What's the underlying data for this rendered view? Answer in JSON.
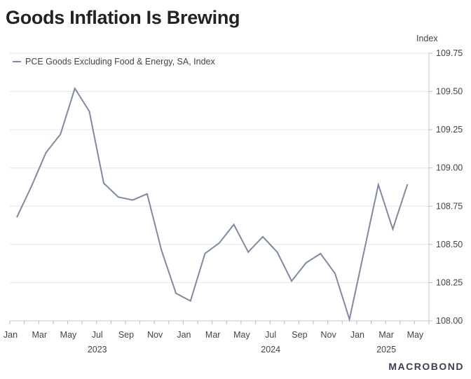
{
  "title": "Goods Inflation Is Brewing",
  "brand": "MACROBOND",
  "chart_data": {
    "type": "line",
    "title": "Goods Inflation Is Brewing",
    "ylabel": "Index",
    "ylim": [
      108.0,
      109.75
    ],
    "yticks": [
      "109.75",
      "109.50",
      "109.25",
      "109.00",
      "108.75",
      "108.50",
      "108.25",
      "108.00"
    ],
    "grid": true,
    "legend_position": "top-left",
    "x_tick_labels": [
      {
        "label": "Jan",
        "month": 0
      },
      {
        "label": "Mar",
        "month": 2
      },
      {
        "label": "May",
        "month": 4
      },
      {
        "label": "Jul",
        "month": 6
      },
      {
        "label": "Sep",
        "month": 8
      },
      {
        "label": "Nov",
        "month": 10
      },
      {
        "label": "Jan",
        "month": 12
      },
      {
        "label": "Mar",
        "month": 14
      },
      {
        "label": "May",
        "month": 16
      },
      {
        "label": "Jul",
        "month": 18
      },
      {
        "label": "Sep",
        "month": 20
      },
      {
        "label": "Nov",
        "month": 22
      },
      {
        "label": "Jan",
        "month": 24
      },
      {
        "label": "Mar",
        "month": 26
      },
      {
        "label": "May",
        "month": 28
      }
    ],
    "year_labels": [
      {
        "label": "2023",
        "month": 6
      },
      {
        "label": "2024",
        "month": 18
      },
      {
        "label": "2025",
        "month": 26
      }
    ],
    "series": [
      {
        "name": "PCE Goods Excluding Food & Energy, SA, Index",
        "color": "#7e89a3",
        "x": [
          "2023-01",
          "2023-02",
          "2023-03",
          "2023-04",
          "2023-05",
          "2023-06",
          "2023-07",
          "2023-08",
          "2023-09",
          "2023-10",
          "2023-11",
          "2023-12",
          "2024-01",
          "2024-02",
          "2024-03",
          "2024-04",
          "2024-05",
          "2024-06",
          "2024-07",
          "2024-08",
          "2024-09",
          "2024-10",
          "2024-11",
          "2024-12",
          "2025-01",
          "2025-02",
          "2025-03",
          "2025-04"
        ],
        "values": [
          108.68,
          108.88,
          109.1,
          109.22,
          109.52,
          109.37,
          108.9,
          108.81,
          108.79,
          108.83,
          108.46,
          108.18,
          108.13,
          108.44,
          108.51,
          108.63,
          108.45,
          108.55,
          108.45,
          108.26,
          108.38,
          108.44,
          108.31,
          108.01,
          108.45,
          108.89,
          108.6,
          108.89
        ]
      }
    ]
  }
}
